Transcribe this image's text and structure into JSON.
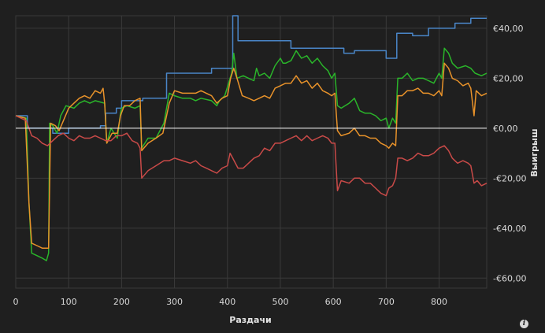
{
  "chart_data": {
    "type": "line",
    "xlabel": "Раздачи",
    "ylabel": "Выигрыш",
    "x_ticks": [
      0,
      100,
      200,
      300,
      400,
      500,
      600,
      700,
      800
    ],
    "y_ticks": [
      40,
      20,
      0,
      -20,
      -40,
      -60
    ],
    "y_tick_labels": [
      "€40,00",
      "€20,00",
      "€0,00",
      "-€20,00",
      "-€40,00",
      "-€60,00"
    ],
    "xlim": [
      0,
      890
    ],
    "ylim": [
      -64,
      45
    ],
    "grid": true,
    "series": [
      {
        "color": "#4a86c8",
        "points": [
          [
            0,
            5
          ],
          [
            22,
            5
          ],
          [
            22,
            0
          ],
          [
            70,
            0
          ],
          [
            70,
            -2
          ],
          [
            100,
            -2
          ],
          [
            100,
            0
          ],
          [
            160,
            0
          ],
          [
            160,
            1
          ],
          [
            170,
            1
          ],
          [
            170,
            6
          ],
          [
            190,
            6
          ],
          [
            190,
            8
          ],
          [
            200,
            8
          ],
          [
            200,
            11
          ],
          [
            240,
            11
          ],
          [
            240,
            12
          ],
          [
            285,
            12
          ],
          [
            285,
            22
          ],
          [
            370,
            22
          ],
          [
            370,
            24
          ],
          [
            410,
            24
          ],
          [
            410,
            45
          ],
          [
            420,
            45
          ],
          [
            420,
            35
          ],
          [
            520,
            35
          ],
          [
            520,
            32
          ],
          [
            620,
            32
          ],
          [
            620,
            30
          ],
          [
            640,
            30
          ],
          [
            640,
            31
          ],
          [
            700,
            31
          ],
          [
            700,
            28
          ],
          [
            720,
            28
          ],
          [
            720,
            38
          ],
          [
            750,
            38
          ],
          [
            750,
            37
          ],
          [
            780,
            37
          ],
          [
            780,
            40
          ],
          [
            830,
            40
          ],
          [
            830,
            42
          ],
          [
            860,
            42
          ],
          [
            860,
            44
          ],
          [
            890,
            44
          ]
        ]
      },
      {
        "color": "#2ab52a",
        "points": [
          [
            0,
            5
          ],
          [
            20,
            4
          ],
          [
            25,
            -30
          ],
          [
            30,
            -50
          ],
          [
            40,
            -51
          ],
          [
            50,
            -52
          ],
          [
            58,
            -53
          ],
          [
            62,
            -50
          ],
          [
            64,
            2
          ],
          [
            70,
            1
          ],
          [
            78,
            -2
          ],
          [
            85,
            5
          ],
          [
            95,
            9
          ],
          [
            110,
            8
          ],
          [
            120,
            10
          ],
          [
            130,
            11
          ],
          [
            140,
            10
          ],
          [
            150,
            11
          ],
          [
            168,
            10
          ],
          [
            172,
            -6
          ],
          [
            180,
            0
          ],
          [
            192,
            -4
          ],
          [
            198,
            6
          ],
          [
            200,
            8
          ],
          [
            210,
            9
          ],
          [
            225,
            8
          ],
          [
            235,
            9
          ],
          [
            238,
            -8
          ],
          [
            250,
            -4
          ],
          [
            265,
            -4
          ],
          [
            280,
            2
          ],
          [
            290,
            14
          ],
          [
            300,
            13
          ],
          [
            315,
            12
          ],
          [
            330,
            12
          ],
          [
            340,
            11
          ],
          [
            350,
            12
          ],
          [
            370,
            11
          ],
          [
            380,
            9
          ],
          [
            385,
            11
          ],
          [
            395,
            13
          ],
          [
            408,
            22
          ],
          [
            412,
            30
          ],
          [
            418,
            20
          ],
          [
            430,
            21
          ],
          [
            440,
            20
          ],
          [
            450,
            19
          ],
          [
            455,
            24
          ],
          [
            460,
            21
          ],
          [
            470,
            22
          ],
          [
            480,
            20
          ],
          [
            490,
            25
          ],
          [
            500,
            28
          ],
          [
            505,
            26
          ],
          [
            510,
            26
          ],
          [
            520,
            27
          ],
          [
            530,
            31
          ],
          [
            540,
            28
          ],
          [
            550,
            29
          ],
          [
            560,
            26
          ],
          [
            570,
            28
          ],
          [
            580,
            25
          ],
          [
            590,
            23
          ],
          [
            597,
            20
          ],
          [
            603,
            22
          ],
          [
            608,
            9
          ],
          [
            615,
            8
          ],
          [
            630,
            10
          ],
          [
            640,
            12
          ],
          [
            650,
            7
          ],
          [
            660,
            6
          ],
          [
            670,
            6
          ],
          [
            680,
            5
          ],
          [
            690,
            3
          ],
          [
            700,
            4
          ],
          [
            705,
            0
          ],
          [
            712,
            4
          ],
          [
            718,
            2
          ],
          [
            722,
            20
          ],
          [
            730,
            20
          ],
          [
            740,
            22
          ],
          [
            750,
            19
          ],
          [
            760,
            20
          ],
          [
            770,
            20
          ],
          [
            780,
            19
          ],
          [
            790,
            18
          ],
          [
            800,
            22
          ],
          [
            805,
            20
          ],
          [
            810,
            32
          ],
          [
            818,
            30
          ],
          [
            825,
            26
          ],
          [
            835,
            24
          ],
          [
            850,
            25
          ],
          [
            860,
            24
          ],
          [
            868,
            22
          ],
          [
            880,
            21
          ],
          [
            890,
            22
          ]
        ]
      },
      {
        "color": "#e8922a",
        "points": [
          [
            0,
            5
          ],
          [
            18,
            4
          ],
          [
            25,
            -30
          ],
          [
            30,
            -46
          ],
          [
            40,
            -47
          ],
          [
            50,
            -48
          ],
          [
            58,
            -48
          ],
          [
            62,
            -48
          ],
          [
            66,
            2
          ],
          [
            75,
            1
          ],
          [
            82,
            -1
          ],
          [
            90,
            3
          ],
          [
            100,
            8
          ],
          [
            110,
            10
          ],
          [
            120,
            12
          ],
          [
            130,
            13
          ],
          [
            140,
            12
          ],
          [
            150,
            15
          ],
          [
            160,
            14
          ],
          [
            165,
            16
          ],
          [
            168,
            10
          ],
          [
            172,
            -6
          ],
          [
            182,
            -2
          ],
          [
            192,
            -2
          ],
          [
            198,
            5
          ],
          [
            205,
            9
          ],
          [
            215,
            9
          ],
          [
            225,
            11
          ],
          [
            235,
            12
          ],
          [
            238,
            -9
          ],
          [
            250,
            -6
          ],
          [
            265,
            -4
          ],
          [
            278,
            -2
          ],
          [
            290,
            10
          ],
          [
            300,
            15
          ],
          [
            315,
            14
          ],
          [
            330,
            14
          ],
          [
            340,
            14
          ],
          [
            350,
            15
          ],
          [
            360,
            14
          ],
          [
            370,
            13
          ],
          [
            380,
            10
          ],
          [
            390,
            12
          ],
          [
            400,
            13
          ],
          [
            406,
            20
          ],
          [
            412,
            24
          ],
          [
            418,
            20
          ],
          [
            428,
            13
          ],
          [
            440,
            12
          ],
          [
            450,
            11
          ],
          [
            460,
            12
          ],
          [
            470,
            13
          ],
          [
            480,
            12
          ],
          [
            490,
            16
          ],
          [
            500,
            17
          ],
          [
            510,
            18
          ],
          [
            520,
            18
          ],
          [
            530,
            21
          ],
          [
            540,
            18
          ],
          [
            550,
            19
          ],
          [
            560,
            16
          ],
          [
            570,
            18
          ],
          [
            580,
            15
          ],
          [
            590,
            14
          ],
          [
            597,
            13
          ],
          [
            603,
            14
          ],
          [
            608,
            -1
          ],
          [
            615,
            -3
          ],
          [
            630,
            -2
          ],
          [
            640,
            0
          ],
          [
            650,
            -3
          ],
          [
            660,
            -3
          ],
          [
            670,
            -4
          ],
          [
            680,
            -4
          ],
          [
            690,
            -6
          ],
          [
            700,
            -7
          ],
          [
            705,
            -8
          ],
          [
            712,
            -6
          ],
          [
            718,
            -7
          ],
          [
            722,
            13
          ],
          [
            730,
            13
          ],
          [
            740,
            15
          ],
          [
            750,
            15
          ],
          [
            760,
            16
          ],
          [
            770,
            14
          ],
          [
            780,
            14
          ],
          [
            790,
            13
          ],
          [
            800,
            15
          ],
          [
            805,
            13
          ],
          [
            810,
            26
          ],
          [
            818,
            24
          ],
          [
            825,
            20
          ],
          [
            835,
            19
          ],
          [
            845,
            17
          ],
          [
            855,
            18
          ],
          [
            860,
            16
          ],
          [
            866,
            5
          ],
          [
            870,
            15
          ],
          [
            880,
            13
          ],
          [
            890,
            14
          ]
        ]
      },
      {
        "color": "#c94a48",
        "points": [
          [
            0,
            5
          ],
          [
            20,
            3
          ],
          [
            30,
            -3
          ],
          [
            40,
            -4
          ],
          [
            50,
            -6
          ],
          [
            60,
            -7
          ],
          [
            70,
            -5
          ],
          [
            80,
            -3
          ],
          [
            90,
            -2
          ],
          [
            100,
            -4
          ],
          [
            110,
            -5
          ],
          [
            120,
            -3
          ],
          [
            130,
            -4
          ],
          [
            140,
            -4
          ],
          [
            150,
            -3
          ],
          [
            160,
            -4
          ],
          [
            170,
            -5
          ],
          [
            180,
            -5
          ],
          [
            190,
            -3
          ],
          [
            200,
            -3
          ],
          [
            210,
            -2
          ],
          [
            220,
            -5
          ],
          [
            230,
            -6
          ],
          [
            235,
            -8
          ],
          [
            238,
            -20
          ],
          [
            250,
            -17
          ],
          [
            265,
            -15
          ],
          [
            280,
            -13
          ],
          [
            290,
            -13
          ],
          [
            300,
            -12
          ],
          [
            315,
            -13
          ],
          [
            330,
            -14
          ],
          [
            340,
            -13
          ],
          [
            350,
            -15
          ],
          [
            360,
            -16
          ],
          [
            370,
            -17
          ],
          [
            380,
            -18
          ],
          [
            390,
            -16
          ],
          [
            400,
            -15
          ],
          [
            405,
            -10
          ],
          [
            410,
            -12
          ],
          [
            420,
            -16
          ],
          [
            430,
            -16
          ],
          [
            440,
            -14
          ],
          [
            450,
            -12
          ],
          [
            460,
            -11
          ],
          [
            470,
            -8
          ],
          [
            480,
            -9
          ],
          [
            490,
            -6
          ],
          [
            500,
            -6
          ],
          [
            510,
            -5
          ],
          [
            520,
            -4
          ],
          [
            530,
            -3
          ],
          [
            540,
            -5
          ],
          [
            550,
            -3
          ],
          [
            560,
            -5
          ],
          [
            570,
            -4
          ],
          [
            580,
            -3
          ],
          [
            590,
            -4
          ],
          [
            597,
            -6
          ],
          [
            603,
            -6
          ],
          [
            608,
            -25
          ],
          [
            615,
            -21
          ],
          [
            630,
            -22
          ],
          [
            640,
            -20
          ],
          [
            650,
            -20
          ],
          [
            660,
            -22
          ],
          [
            670,
            -22
          ],
          [
            680,
            -24
          ],
          [
            690,
            -26
          ],
          [
            700,
            -27
          ],
          [
            705,
            -24
          ],
          [
            712,
            -23
          ],
          [
            718,
            -20
          ],
          [
            722,
            -12
          ],
          [
            730,
            -12
          ],
          [
            740,
            -13
          ],
          [
            750,
            -12
          ],
          [
            760,
            -10
          ],
          [
            770,
            -11
          ],
          [
            780,
            -11
          ],
          [
            790,
            -10
          ],
          [
            800,
            -8
          ],
          [
            810,
            -7
          ],
          [
            818,
            -9
          ],
          [
            825,
            -12
          ],
          [
            835,
            -14
          ],
          [
            845,
            -13
          ],
          [
            855,
            -14
          ],
          [
            860,
            -15
          ],
          [
            866,
            -22
          ],
          [
            872,
            -21
          ],
          [
            880,
            -23
          ],
          [
            890,
            -22
          ]
        ]
      }
    ],
    "zero_line_color": "#ffffff"
  },
  "info_glyph": "i"
}
